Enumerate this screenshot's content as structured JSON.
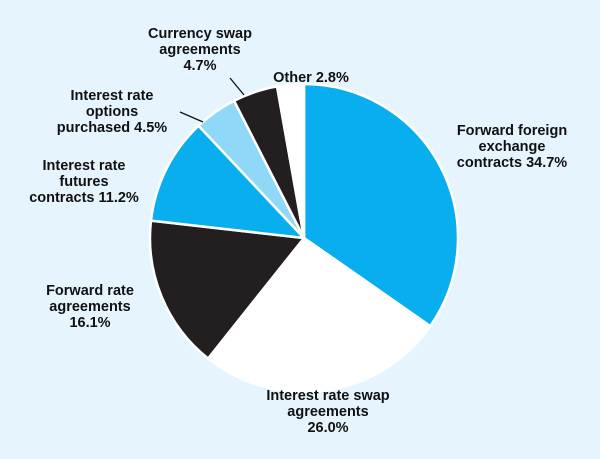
{
  "chart_data": {
    "type": "pie",
    "start_angle_deg": 0,
    "direction": "clockwise",
    "slices": [
      {
        "label": "Forward foreign exchange contracts",
        "lines": [
          "Forward foreign",
          "exchange",
          "contracts 34.7%"
        ],
        "value": 34.7,
        "color": "#08aeee"
      },
      {
        "label": "Interest rate swap agreements",
        "lines": [
          "Interest rate swap",
          "agreements",
          "26.0%"
        ],
        "value": 26.0,
        "color": "#ffffff"
      },
      {
        "label": "Forward rate agreements",
        "lines": [
          "Forward rate",
          "agreements",
          "16.1%"
        ],
        "value": 16.1,
        "color": "#231f20"
      },
      {
        "label": "Interest rate futures contracts",
        "lines": [
          "Interest rate",
          "futures",
          "contracts 11.2%"
        ],
        "value": 11.2,
        "color": "#08aeee"
      },
      {
        "label": "Interest rate options purchased",
        "lines": [
          "Interest rate",
          "options",
          "purchased 4.5%"
        ],
        "value": 4.5,
        "color": "#8fd8f7"
      },
      {
        "label": "Currency swap agreements",
        "lines": [
          "Currency swap",
          "agreements",
          "4.7%"
        ],
        "value": 4.7,
        "color": "#231f20"
      },
      {
        "label": "Other",
        "lines": [
          "Other 2.8%"
        ],
        "value": 2.8,
        "color": "#ffffff"
      }
    ],
    "legend": "none",
    "slice_border_color": "#ffffff",
    "background_color": "#e6f5fd"
  }
}
